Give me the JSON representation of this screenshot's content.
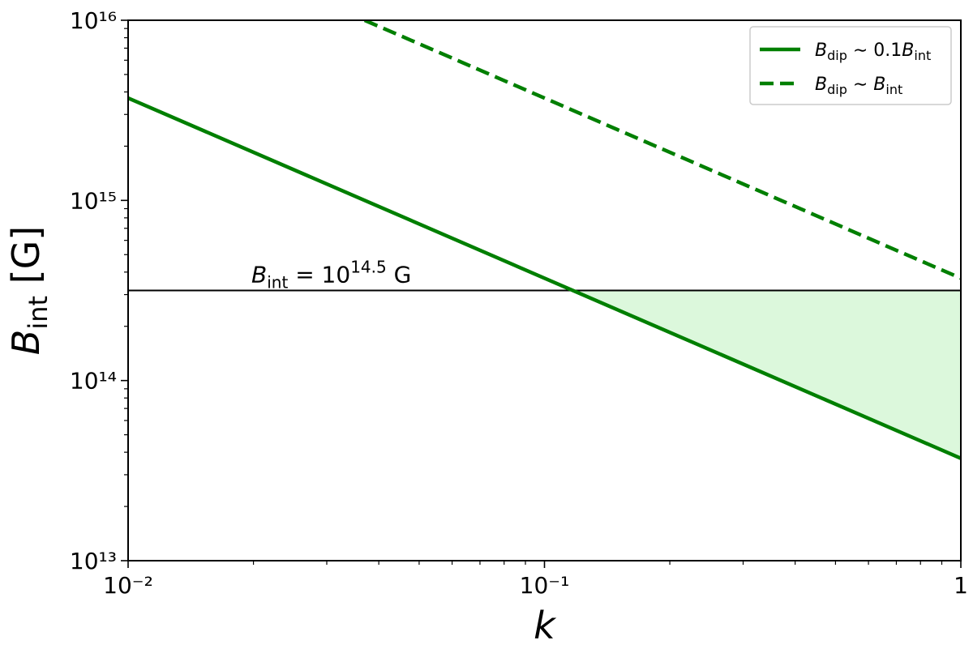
{
  "chart_data": {
    "type": "line",
    "xlabel": "k",
    "ylabel": [
      "B",
      "int",
      " [G]"
    ],
    "log_x": true,
    "log_y": true,
    "xlim": [
      0.01,
      1
    ],
    "ylim": [
      10000000000000.0,
      1e+16
    ],
    "xticks": [
      {
        "value": 0.01,
        "label": "10⁻²"
      },
      {
        "value": 0.1,
        "label": "10⁻¹"
      },
      1
    ],
    "yticks": [
      {
        "value": 10000000000000.0,
        "label": "10¹³"
      },
      {
        "value": 100000000000000.0,
        "label": "10¹⁴"
      },
      {
        "value": 1000000000000000.0,
        "label": "10¹⁵"
      },
      {
        "value": 1e+16,
        "label": "10¹⁶"
      }
    ],
    "series": [
      {
        "name": "Bdip ∼ 0.1Bint",
        "color": "#007f00",
        "dash": false,
        "x": [
          0.01,
          1
        ],
        "values": [
          3700000000000000.0,
          37000000000000.0
        ]
      },
      {
        "name": "Bdip ∼ Bint",
        "color": "#007f00",
        "dash": true,
        "x": [
          0.037,
          1
        ],
        "values": [
          1e+16,
          370000000000000.0
        ]
      }
    ],
    "hline": {
      "value": 316200000000000.0,
      "color": "#000000"
    },
    "annotation": [
      "B",
      "int",
      " = 10",
      "14.5",
      " G"
    ],
    "fill": {
      "color": "#dcf8dc",
      "x": [
        0.117,
        1
      ],
      "lower": [
        316200000000000.0,
        37000000000000.0
      ],
      "upper": [
        316200000000000.0,
        316200000000000.0
      ]
    },
    "legend": "upper right"
  }
}
